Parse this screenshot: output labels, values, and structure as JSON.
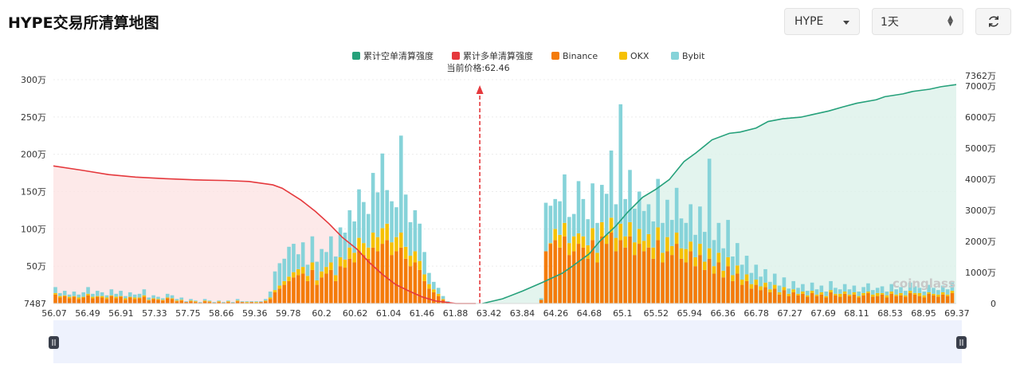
{
  "title": "HYPE交易所清算地图",
  "controls": {
    "symbol": "HYPE",
    "range": "1天",
    "refresh_icon": "refresh-icon",
    "symbol_icon": "caret-down-icon",
    "range_icon": "updown-arrows-icon"
  },
  "watermark": "coinglass",
  "chart_data": {
    "type": "bar",
    "current_price_label": "当前价格:62.46",
    "current_price": 62.46,
    "legend": [
      {
        "name": "累计空单清算强度",
        "color": "#26a17b"
      },
      {
        "name": "累计多单清算强度",
        "color": "#e5393d"
      },
      {
        "name": "Binance",
        "color": "#f47b0a"
      },
      {
        "name": "OKX",
        "color": "#f6c104"
      },
      {
        "name": "Bybit",
        "color": "#86d3d9"
      }
    ],
    "legend_position": "top-center",
    "x_tick_labels": [
      "56.07",
      "56.49",
      "56.91",
      "57.33",
      "57.75",
      "58.66",
      "59.36",
      "59.78",
      "60.2",
      "60.62",
      "61.04",
      "61.46",
      "61.88",
      "63.42",
      "63.84",
      "64.26",
      "64.68",
      "65.1",
      "65.52",
      "65.94",
      "66.36",
      "66.78",
      "67.27",
      "67.69",
      "68.11",
      "68.53",
      "68.95",
      "69.37"
    ],
    "x_range": [
      56.07,
      69.6
    ],
    "y_left_ticks": [
      "7487",
      "50万",
      "100万",
      "150万",
      "200万",
      "250万",
      "300万"
    ],
    "y_left_range": [
      0,
      3000000
    ],
    "y_right_ticks": [
      "0",
      "1000万",
      "2000万",
      "3000万",
      "4000万",
      "5000万",
      "6000万",
      "7000万",
      "7362万"
    ],
    "y_right_range": [
      0,
      73620000
    ],
    "grid": true,
    "series_bars": {
      "x": [
        56.1,
        56.17,
        56.24,
        56.31,
        56.38,
        56.45,
        56.52,
        56.59,
        56.66,
        56.73,
        56.8,
        56.87,
        56.94,
        57.01,
        57.08,
        57.15,
        57.22,
        57.29,
        57.36,
        57.43,
        57.5,
        57.57,
        57.64,
        57.71,
        57.78,
        57.85,
        57.92,
        57.99,
        58.06,
        58.13,
        58.2,
        58.27,
        58.34,
        58.41,
        58.48,
        58.55,
        58.62,
        58.69,
        58.76,
        58.83,
        58.9,
        58.97,
        59.04,
        59.11,
        59.18,
        59.25,
        59.32,
        59.39,
        59.46,
        59.53,
        59.6,
        59.67,
        59.74,
        59.81,
        59.88,
        59.95,
        60.02,
        60.09,
        60.16,
        60.23,
        60.3,
        60.37,
        60.44,
        60.51,
        60.58,
        60.65,
        60.72,
        60.79,
        60.86,
        60.93,
        61.0,
        61.07,
        61.14,
        61.21,
        61.28,
        61.35,
        61.42,
        61.49,
        61.56,
        61.63,
        61.7,
        61.77,
        61.84,
        61.91,
        61.98,
        62.05,
        62.12,
        62.19,
        62.26,
        62.33,
        62.4,
        62.47,
        62.54,
        62.61,
        62.68,
        62.75,
        62.82,
        62.89,
        62.96,
        63.03,
        63.1,
        63.17,
        63.24,
        63.31,
        63.38,
        63.45,
        63.52,
        63.59,
        63.66,
        63.73,
        63.8,
        63.87,
        63.94,
        64.01,
        64.08,
        64.15,
        64.22,
        64.29,
        64.36,
        64.43,
        64.5,
        64.57,
        64.64,
        64.71,
        64.78,
        64.85,
        64.92,
        64.99,
        65.06,
        65.13,
        65.2,
        65.27,
        65.34,
        65.41,
        65.48,
        65.55,
        65.62,
        65.69,
        65.76,
        65.83,
        65.9,
        65.97,
        66.04,
        66.11,
        66.18,
        66.25,
        66.32,
        66.39,
        66.46,
        66.53,
        66.6,
        66.67,
        66.74,
        66.81,
        66.88,
        66.95,
        67.02,
        67.09,
        67.16,
        67.23,
        67.3,
        67.37,
        67.44,
        67.51,
        67.58,
        67.65,
        67.72,
        67.79,
        67.86,
        67.93,
        68.0,
        68.07,
        68.14,
        68.21,
        68.28,
        68.35,
        68.42,
        68.49,
        68.56,
        68.63,
        68.7,
        68.77,
        68.84,
        68.91,
        68.98,
        69.05,
        69.12,
        69.19,
        69.26,
        69.33,
        69.4,
        69.47,
        69.54
      ],
      "binance": [
        120000,
        80000,
        100000,
        70000,
        90000,
        60000,
        80000,
        110000,
        70000,
        90000,
        80000,
        60000,
        100000,
        70000,
        90000,
        50000,
        80000,
        60000,
        70000,
        90000,
        40000,
        60000,
        50000,
        40000,
        70000,
        60000,
        30000,
        40000,
        20000,
        30000,
        20000,
        10000,
        30000,
        20000,
        10000,
        20000,
        10000,
        20000,
        10000,
        30000,
        20000,
        10000,
        20000,
        10000,
        20000,
        30000,
        60000,
        150000,
        200000,
        250000,
        300000,
        350000,
        380000,
        400000,
        300000,
        450000,
        250000,
        350000,
        400000,
        450000,
        300000,
        500000,
        480000,
        600000,
        550000,
        700000,
        650000,
        600000,
        750000,
        700000,
        800000,
        850000,
        650000,
        700000,
        750000,
        600000,
        500000,
        550000,
        450000,
        300000,
        200000,
        150000,
        100000,
        50000,
        20000,
        10000,
        0,
        0,
        0,
        0,
        0,
        0,
        0,
        0,
        0,
        0,
        0,
        0,
        0,
        0,
        0,
        0,
        0,
        0,
        50000,
        700000,
        800000,
        850000,
        750000,
        900000,
        650000,
        700000,
        800000,
        750000,
        600000,
        850000,
        550000,
        900000,
        800000,
        950000,
        700000,
        850000,
        750000,
        900000,
        650000,
        800000,
        700000,
        750000,
        600000,
        850000,
        550000,
        700000,
        650000,
        800000,
        600000,
        550000,
        700000,
        500000,
        650000,
        450000,
        600000,
        400000,
        550000,
        350000,
        500000,
        300000,
        400000,
        250000,
        300000,
        200000,
        250000,
        180000,
        220000,
        150000,
        200000,
        120000,
        180000,
        100000,
        150000,
        110000,
        130000,
        90000,
        140000,
        100000,
        120000,
        80000,
        150000,
        110000,
        90000,
        130000,
        100000,
        120000,
        80000,
        110000,
        140000,
        90000,
        100000,
        120000,
        80000,
        130000,
        100000,
        110000,
        90000,
        140000,
        120000,
        100000,
        80000,
        130000,
        110000,
        90000,
        120000,
        100000,
        140000,
        90000,
        110000,
        80000,
        120000,
        100000,
        90000,
        60000,
        40000
      ],
      "okx": [
        20000,
        20000,
        10000,
        20000,
        10000,
        20000,
        10000,
        20000,
        20000,
        10000,
        20000,
        20000,
        10000,
        20000,
        10000,
        20000,
        10000,
        20000,
        10000,
        20000,
        10000,
        10000,
        10000,
        10000,
        10000,
        10000,
        10000,
        10000,
        0,
        10000,
        10000,
        0,
        10000,
        10000,
        0,
        10000,
        0,
        10000,
        0,
        10000,
        0,
        10000,
        0,
        10000,
        0,
        10000,
        20000,
        30000,
        40000,
        50000,
        60000,
        70000,
        80000,
        90000,
        70000,
        100000,
        60000,
        80000,
        90000,
        100000,
        80000,
        120000,
        110000,
        150000,
        130000,
        180000,
        160000,
        150000,
        200000,
        190000,
        210000,
        220000,
        170000,
        190000,
        200000,
        160000,
        140000,
        150000,
        120000,
        90000,
        60000,
        40000,
        30000,
        10000,
        0,
        0,
        0,
        0,
        0,
        0,
        0,
        0,
        0,
        0,
        0,
        0,
        0,
        0,
        0,
        0,
        0,
        0,
        0,
        0,
        0,
        0,
        10000,
        150000,
        170000,
        180000,
        160000,
        200000,
        140000,
        150000,
        180000,
        160000,
        130000,
        190000,
        120000,
        200000,
        180000,
        220000,
        150000,
        190000,
        170000,
        200000,
        140000,
        180000,
        150000,
        170000,
        130000,
        190000,
        120000,
        150000,
        140000,
        180000,
        130000,
        120000,
        150000,
        110000,
        140000,
        100000,
        130000,
        90000,
        120000,
        80000,
        110000,
        70000,
        90000,
        60000,
        70000,
        50000,
        60000,
        40000,
        50000,
        30000,
        40000,
        30000,
        40000,
        20000,
        30000,
        20000,
        30000,
        20000,
        30000,
        20000,
        30000,
        20000,
        40000,
        30000,
        20000,
        30000,
        20000,
        30000,
        20000,
        30000,
        40000,
        20000,
        30000,
        30000,
        20000,
        30000,
        20000,
        30000,
        20000,
        40000,
        30000,
        20000,
        20000,
        30000,
        30000,
        20000,
        30000,
        20000,
        40000,
        20000,
        30000,
        20000,
        30000,
        20000,
        20000,
        10000,
        10000
      ],
      "bybit": [
        80000,
        40000,
        60000,
        30000,
        60000,
        40000,
        60000,
        90000,
        40000,
        70000,
        50000,
        30000,
        80000,
        40000,
        70000,
        30000,
        60000,
        40000,
        50000,
        80000,
        30000,
        40000,
        30000,
        20000,
        50000,
        40000,
        20000,
        30000,
        10000,
        20000,
        10000,
        10000,
        20000,
        10000,
        10000,
        10000,
        10000,
        10000,
        10000,
        20000,
        10000,
        10000,
        10000,
        10000,
        10000,
        20000,
        80000,
        250000,
        300000,
        300000,
        400000,
        380000,
        200000,
        330000,
        150000,
        350000,
        250000,
        300000,
        200000,
        350000,
        250000,
        400000,
        360000,
        500000,
        420000,
        650000,
        550000,
        450000,
        800000,
        600000,
        1000000,
        450000,
        550000,
        400000,
        1300000,
        700000,
        450000,
        550000,
        500000,
        300000,
        150000,
        100000,
        80000,
        40000,
        10000,
        0,
        0,
        0,
        0,
        0,
        0,
        0,
        0,
        0,
        0,
        0,
        0,
        0,
        0,
        0,
        0,
        0,
        0,
        0,
        20000,
        650000,
        500000,
        400000,
        450000,
        650000,
        350000,
        300000,
        700000,
        500000,
        350000,
        600000,
        400000,
        500000,
        550000,
        900000,
        450000,
        1600000,
        500000,
        700000,
        450000,
        500000,
        400000,
        400000,
        350000,
        650000,
        400000,
        500000,
        350000,
        600000,
        400000,
        350000,
        500000,
        300000,
        500000,
        400000,
        1200000,
        350000,
        400000,
        300000,
        500000,
        250000,
        300000,
        200000,
        250000,
        150000,
        200000,
        130000,
        180000,
        100000,
        150000,
        90000,
        130000,
        70000,
        110000,
        80000,
        100000,
        60000,
        110000,
        70000,
        90000,
        60000,
        120000,
        80000,
        60000,
        100000,
        70000,
        90000,
        60000,
        80000,
        110000,
        60000,
        70000,
        90000,
        50000,
        100000,
        70000,
        80000,
        60000,
        110000,
        90000,
        70000,
        50000,
        100000,
        80000,
        60000,
        90000,
        70000,
        110000,
        60000,
        80000,
        50000,
        90000,
        70000,
        60000,
        40000,
        20000
      ]
    },
    "series_long_cumulative": {
      "x": [
        56.07,
        56.5,
        56.9,
        57.3,
        57.75,
        58.2,
        58.66,
        59.0,
        59.36,
        59.5,
        59.78,
        60.0,
        60.2,
        60.4,
        60.62,
        60.8,
        61.0,
        61.2,
        61.4,
        61.6,
        61.8,
        61.95,
        62.1,
        62.25,
        62.4
      ],
      "values": [
        44300000,
        42900000,
        41500000,
        40700000,
        40200000,
        39800000,
        39600000,
        39300000,
        38200000,
        37100000,
        33300000,
        29600000,
        25700000,
        21300000,
        17500000,
        13300000,
        9400000,
        6100000,
        4000000,
        2100000,
        800000,
        400000,
        0,
        0,
        0
      ]
    },
    "series_short_cumulative": {
      "x": [
        62.5,
        62.8,
        63.1,
        63.42,
        63.7,
        63.84,
        64.1,
        64.26,
        64.5,
        64.68,
        64.9,
        65.1,
        65.3,
        65.52,
        65.7,
        65.94,
        66.2,
        66.36,
        66.6,
        66.78,
        67.0,
        67.27,
        67.5,
        67.69,
        67.9,
        68.11,
        68.4,
        68.53,
        68.8,
        68.95,
        69.2,
        69.37,
        69.6
      ],
      "values": [
        0,
        1500000,
        4000000,
        7000000,
        9800000,
        11900000,
        16000000,
        20100000,
        25000000,
        29500000,
        34200000,
        36800000,
        39900000,
        45700000,
        48500000,
        52700000,
        54800000,
        55200000,
        56500000,
        58600000,
        59500000,
        60000000,
        61100000,
        62000000,
        63300000,
        64500000,
        65600000,
        66600000,
        67500000,
        68300000,
        69000000,
        69800000,
        70500000
      ]
    },
    "annotation": "当前价格:62.46"
  }
}
